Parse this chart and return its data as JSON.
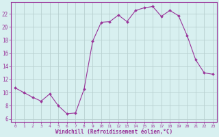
{
  "x": [
    0,
    1,
    2,
    3,
    4,
    5,
    6,
    7,
    8,
    9,
    10,
    11,
    12,
    13,
    14,
    15,
    16,
    17,
    18,
    19,
    20,
    21,
    22,
    23
  ],
  "y": [
    10.7,
    10.0,
    9.3,
    8.7,
    9.8,
    8.0,
    6.8,
    6.9,
    10.5,
    17.8,
    20.7,
    20.8,
    21.8,
    20.8,
    22.5,
    22.9,
    23.1,
    21.6,
    22.5,
    21.7,
    18.7,
    15.0,
    13.0,
    12.8
  ],
  "line_color": "#993399",
  "marker": "D",
  "marker_size": 2.0,
  "bg_color": "#d8f0f0",
  "grid_color": "#b8d0d0",
  "xlabel": "Windchill (Refroidissement éolien,°C)",
  "xlabel_color": "#993399",
  "tick_color": "#993399",
  "ylim": [
    5.5,
    23.8
  ],
  "xlim": [
    -0.5,
    23.5
  ],
  "yticks": [
    6,
    8,
    10,
    12,
    14,
    16,
    18,
    20,
    22
  ],
  "xticks": [
    0,
    1,
    2,
    3,
    4,
    5,
    6,
    7,
    8,
    9,
    10,
    11,
    12,
    13,
    14,
    15,
    16,
    17,
    18,
    19,
    20,
    21,
    22,
    23
  ],
  "spine_color": "#993399"
}
